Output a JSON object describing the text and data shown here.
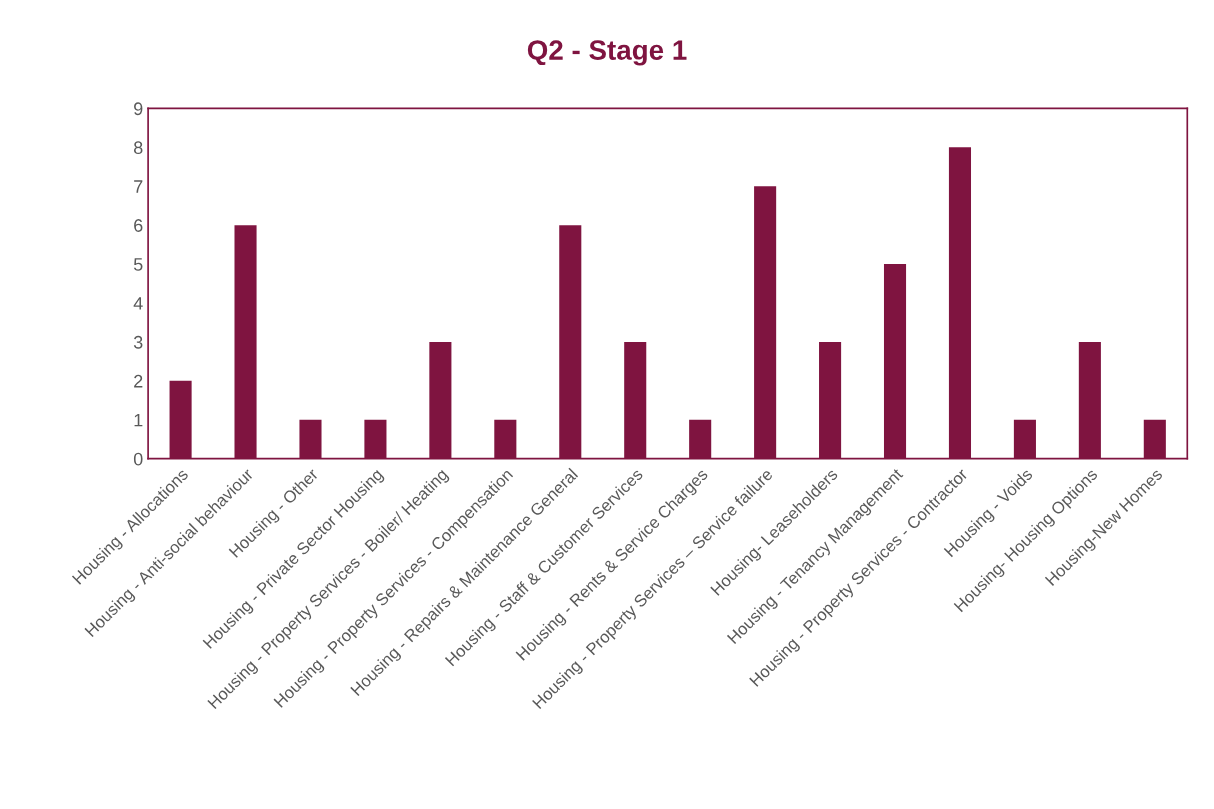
{
  "chart_data": {
    "type": "bar",
    "title": "Q2 - Stage 1",
    "categories": [
      "Housing - Allocations",
      "Housing - Anti-social behaviour",
      "Housing - Other",
      "Housing - Private Sector Housing",
      "Housing - Property Services - Boiler/ Heating",
      "Housing - Property Services - Compensation",
      "Housing - Repairs & Maintenance General",
      "Housing - Staff & Customer Services",
      "Housing - Rents & Service Charges",
      "Housing - Property Services – Service failure",
      "Housing- Leaseholders",
      "Housing - Tenancy Management",
      "Housing - Property Services - Contractor",
      "Housing - Voids",
      "Housing- Housing Options",
      "Housing-New Homes"
    ],
    "values": [
      2,
      6,
      1,
      1,
      3,
      1,
      6,
      3,
      1,
      7,
      3,
      5,
      8,
      1,
      3,
      1
    ],
    "color": "#7f1440",
    "ylim": [
      0,
      9
    ],
    "yticks": [
      0,
      1,
      2,
      3,
      4,
      5,
      6,
      7,
      8,
      9
    ],
    "grid": false,
    "legend": false
  }
}
